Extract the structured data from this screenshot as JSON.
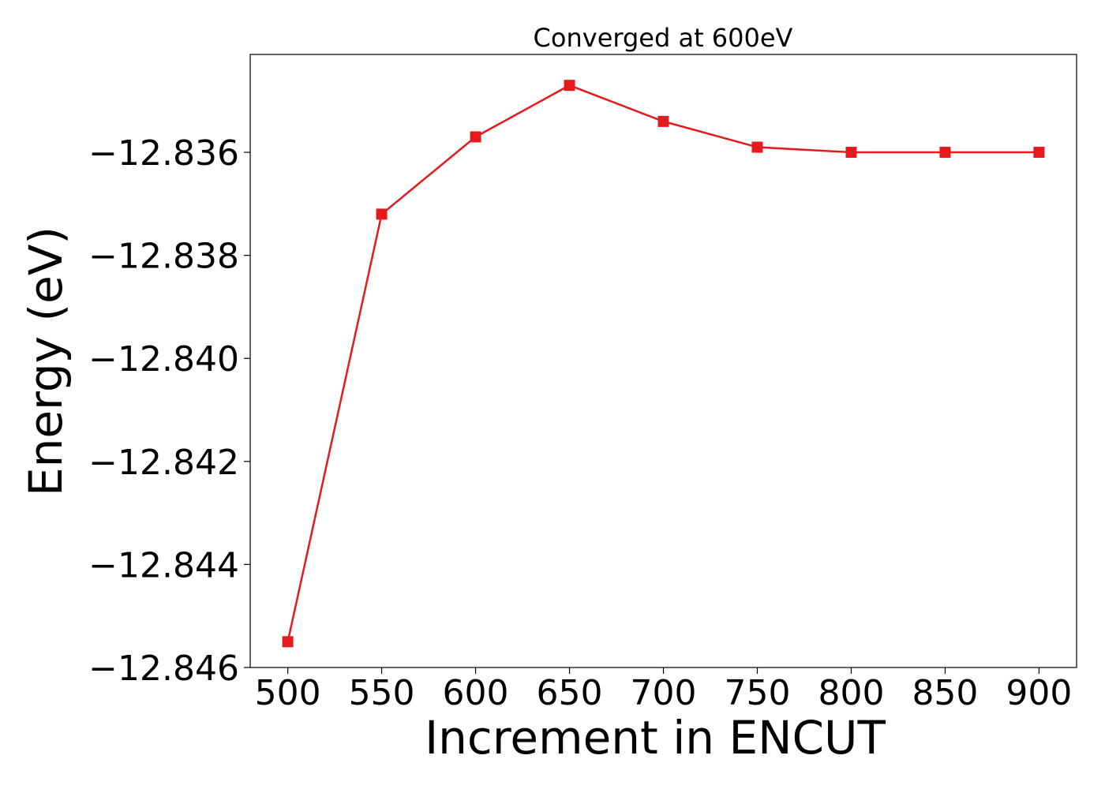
{
  "chart_data": {
    "type": "line",
    "title": "Converged at 600eV",
    "xlabel": "Increment in ENCUT",
    "ylabel": "Energy (eV)",
    "x": [
      500,
      550,
      600,
      650,
      700,
      750,
      800,
      850,
      900
    ],
    "series": [
      {
        "values": [
          -12.8455,
          -12.8372,
          -12.8357,
          -12.8347,
          -12.8354,
          -12.8359,
          -12.836,
          -12.836,
          -12.836
        ],
        "color": "#e41a1c",
        "marker": "square"
      }
    ],
    "xlim": [
      480,
      920
    ],
    "ylim": [
      -12.846,
      -12.8341
    ],
    "xticks": [
      500,
      550,
      600,
      650,
      700,
      750,
      800,
      850,
      900
    ],
    "xtick_labels": [
      "500",
      "550",
      "600",
      "650",
      "700",
      "750",
      "800",
      "850",
      "900"
    ],
    "yticks": [
      -12.836,
      -12.838,
      -12.84,
      -12.842,
      -12.844,
      -12.846
    ],
    "ytick_labels": [
      "−12.836",
      "−12.838",
      "−12.840",
      "−12.842",
      "−12.844",
      "−12.846"
    ],
    "grid": false,
    "legend": "none"
  }
}
